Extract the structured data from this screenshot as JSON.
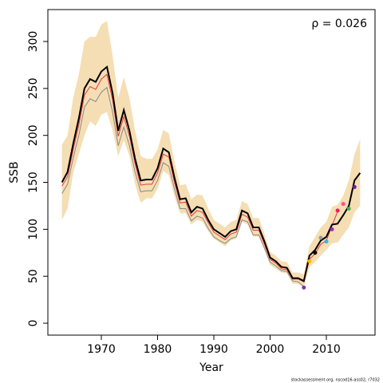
{
  "chart_data": {
    "type": "line",
    "x_label": "Year",
    "y_label": "SSB",
    "annotation": "ρ = 0.026",
    "footer": "stockassessment.org, nscod16-ass02, r7032",
    "x": [
      1963,
      1964,
      1965,
      1966,
      1967,
      1968,
      1969,
      1970,
      1971,
      1972,
      1973,
      1974,
      1975,
      1976,
      1977,
      1978,
      1979,
      1980,
      1981,
      1982,
      1983,
      1984,
      1985,
      1986,
      1987,
      1988,
      1989,
      1990,
      1991,
      1992,
      1993,
      1994,
      1995,
      1996,
      1997,
      1998,
      1999,
      2000,
      2001,
      2002,
      2003,
      2004,
      2005,
      2006,
      2007,
      2008,
      2009,
      2010,
      2011,
      2012,
      2013,
      2014,
      2015,
      2016
    ],
    "band_color": "#f5deb3",
    "band_upper": [
      190,
      200,
      240,
      265,
      300,
      305,
      305,
      318,
      322,
      285,
      240,
      262,
      240,
      205,
      178,
      175,
      175,
      185,
      206,
      202,
      172,
      147,
      148,
      132,
      137,
      136,
      122,
      110,
      106,
      102,
      108,
      110,
      130,
      127,
      112,
      112,
      95,
      76,
      72,
      66,
      65,
      54,
      54,
      52,
      82,
      92,
      102,
      108,
      124,
      126,
      136,
      152,
      180,
      196
    ],
    "band_lower": [
      110,
      122,
      160,
      180,
      200,
      215,
      210,
      222,
      225,
      205,
      178,
      195,
      178,
      148,
      128,
      133,
      133,
      143,
      162,
      158,
      135,
      117,
      117,
      105,
      110,
      108,
      98,
      90,
      86,
      82,
      88,
      90,
      108,
      105,
      92,
      92,
      78,
      62,
      58,
      54,
      53,
      42,
      42,
      38,
      60,
      65,
      72,
      78,
      85,
      86,
      94,
      102,
      118,
      125
    ],
    "series": [
      {
        "color": "#888888",
        "width": 1,
        "values": [
          138,
          148,
          176,
          200,
          230,
          239,
          236,
          246,
          251,
          225,
          189,
          209,
          189,
          161,
          140,
          141,
          141,
          152,
          171,
          167,
          143,
          122,
          122,
          109,
          114,
          112,
          101,
          92,
          88,
          85,
          90,
          92,
          110,
          108,
          94,
          94,
          80,
          65,
          61,
          56,
          55,
          45,
          44,
          39,
          null,
          null,
          null,
          null,
          null,
          null,
          null,
          null,
          null,
          null
        ]
      },
      {
        "color": "#e8383d",
        "width": 1,
        "values": [
          146,
          156,
          185,
          211,
          243,
          252,
          249,
          260,
          265,
          238,
          199,
          220,
          199,
          170,
          147,
          148,
          148,
          160,
          180,
          177,
          150,
          128,
          129,
          114,
          120,
          118,
          107,
          97,
          93,
          89,
          95,
          97,
          116,
          113,
          99,
          99,
          84,
          68,
          64,
          58,
          57,
          47,
          47,
          44,
          68,
          74,
          84,
          88,
          104,
          119,
          null,
          null,
          null,
          null
        ]
      },
      {
        "color": "#000000",
        "width": 2,
        "values": [
          150,
          161,
          191,
          218,
          250,
          260,
          257,
          268,
          273,
          245,
          205,
          227,
          205,
          175,
          152,
          153,
          153,
          165,
          186,
          182,
          155,
          132,
          133,
          118,
          124,
          122,
          110,
          100,
          96,
          92,
          98,
          100,
          120,
          117,
          102,
          102,
          87,
          70,
          66,
          60,
          59,
          48,
          48,
          45,
          72,
          78,
          88,
          92,
          105,
          106,
          115,
          125,
          152,
          160
        ]
      }
    ],
    "points": {
      "x": [
        2006,
        2007,
        2008,
        2009,
        2010,
        2011,
        2012,
        2013,
        2014,
        2015
      ],
      "values": [
        38,
        66,
        75,
        91,
        87,
        100,
        120,
        127,
        122,
        145
      ],
      "colors": [
        "#7b2fbe",
        "#f5b800",
        "#000000",
        "#999999",
        "#33b5e5",
        "#9b2fae",
        "#e91e63",
        "#ff4f9a",
        "#4caf50",
        "#6a1b9a"
      ]
    },
    "xlim": [
      1960.5,
      2018.65
    ],
    "ylim": [
      -12.7,
      334
    ],
    "xticks": [
      1970,
      1980,
      1990,
      2000,
      2010
    ],
    "yticks": [
      0,
      50,
      100,
      150,
      200,
      250,
      300
    ]
  }
}
